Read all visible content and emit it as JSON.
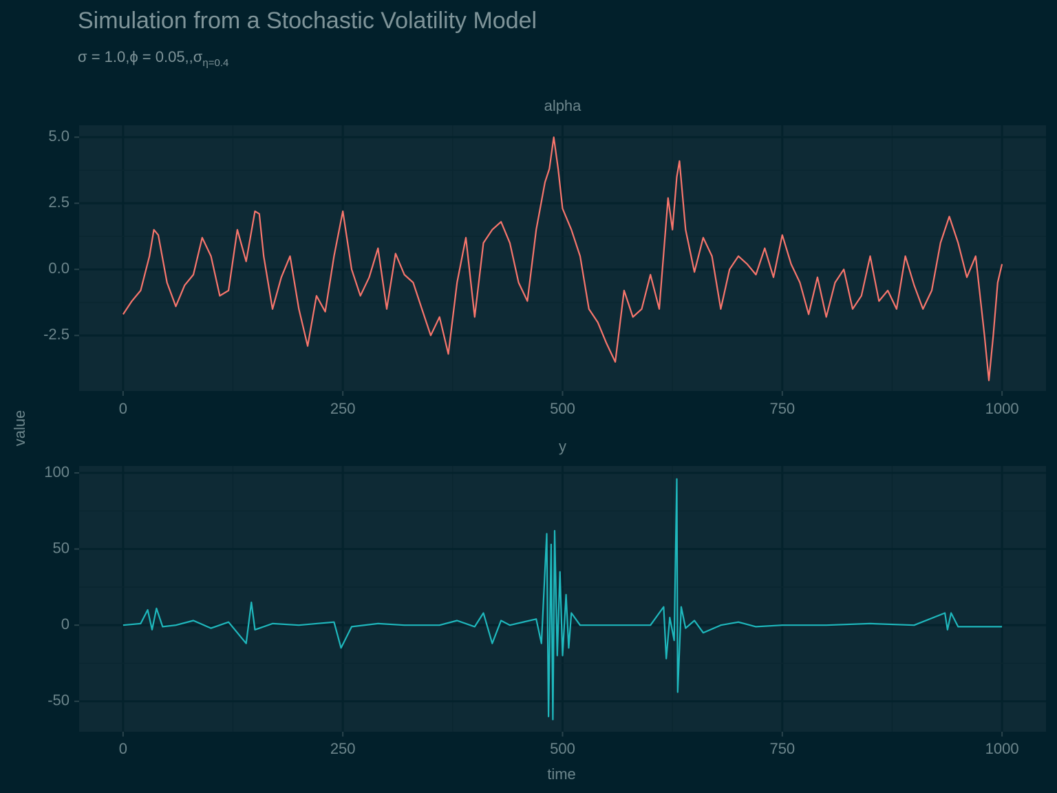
{
  "title": "Simulation from a Stochastic Volatility Model",
  "subtitle": {
    "text": "σ = 1.0,ϕ = 0.05,,σ",
    "subscript": "η=0.4"
  },
  "y_label": "value",
  "x_label": "time",
  "chart_data": [
    {
      "type": "line",
      "facet": "alpha",
      "color": "#f8766d",
      "grid": true,
      "xlim": [
        -50,
        1050
      ],
      "xticks": [
        0,
        250,
        500,
        750,
        1000
      ],
      "ylim": [
        -4.6,
        5.45
      ],
      "yticks": [
        {
          "value": 5,
          "label": "5.0"
        },
        2.5,
        {
          "value": 0,
          "label": "0.0"
        },
        -2.5
      ],
      "x": [
        0,
        10,
        20,
        30,
        35,
        40,
        50,
        60,
        70,
        80,
        90,
        100,
        110,
        120,
        130,
        140,
        150,
        155,
        160,
        170,
        180,
        190,
        200,
        210,
        220,
        230,
        240,
        250,
        260,
        270,
        280,
        290,
        300,
        310,
        320,
        330,
        340,
        350,
        360,
        370,
        380,
        390,
        400,
        410,
        420,
        430,
        440,
        450,
        460,
        470,
        480,
        485,
        490,
        495,
        500,
        510,
        520,
        530,
        540,
        550,
        560,
        570,
        580,
        590,
        600,
        610,
        620,
        625,
        630,
        633,
        640,
        650,
        660,
        670,
        680,
        690,
        700,
        710,
        720,
        730,
        740,
        750,
        760,
        770,
        780,
        790,
        800,
        810,
        820,
        830,
        840,
        850,
        860,
        870,
        880,
        890,
        900,
        910,
        920,
        930,
        940,
        950,
        960,
        970,
        980,
        985,
        990,
        995,
        1000
      ],
      "values": [
        -1.7,
        -1.2,
        -0.8,
        0.5,
        1.5,
        1.3,
        -0.5,
        -1.4,
        -0.6,
        -0.2,
        1.2,
        0.5,
        -1.0,
        -0.8,
        1.5,
        0.3,
        2.2,
        2.1,
        0.5,
        -1.5,
        -0.3,
        0.5,
        -1.5,
        -2.9,
        -1.0,
        -1.6,
        0.5,
        2.2,
        0.0,
        -1.0,
        -0.3,
        0.8,
        -1.5,
        0.6,
        -0.2,
        -0.5,
        -1.5,
        -2.5,
        -1.8,
        -3.2,
        -0.5,
        1.2,
        -1.8,
        1.0,
        1.5,
        1.8,
        1.0,
        -0.5,
        -1.2,
        1.5,
        3.3,
        3.8,
        5.0,
        3.8,
        2.3,
        1.5,
        0.5,
        -1.5,
        -2.0,
        -2.8,
        -3.5,
        -0.8,
        -1.8,
        -1.5,
        -0.2,
        -1.5,
        2.7,
        1.5,
        3.5,
        4.1,
        1.5,
        -0.1,
        1.2,
        0.5,
        -1.5,
        0.0,
        0.5,
        0.2,
        -0.2,
        0.8,
        -0.3,
        1.3,
        0.2,
        -0.5,
        -1.7,
        -0.3,
        -1.8,
        -0.5,
        0.0,
        -1.5,
        -1.0,
        0.5,
        -1.2,
        -0.8,
        -1.5,
        0.5,
        -0.6,
        -1.5,
        -0.8,
        1.0,
        2.0,
        1.0,
        -0.3,
        0.5,
        -2.5,
        -4.2,
        -2.5,
        -0.5,
        0.2
      ]
    },
    {
      "type": "line",
      "facet": "y",
      "color": "#1fb8bd",
      "grid": true,
      "xlim": [
        -50,
        1050
      ],
      "xticks": [
        0,
        250,
        500,
        750,
        1000
      ],
      "ylim": [
        -70,
        104.5
      ],
      "yticks": [
        100,
        50,
        0,
        -50
      ],
      "x": [
        0,
        20,
        28,
        33,
        38,
        45,
        60,
        80,
        100,
        120,
        140,
        146,
        150,
        170,
        200,
        240,
        248,
        260,
        290,
        320,
        360,
        380,
        400,
        410,
        420,
        430,
        440,
        470,
        476,
        482,
        484,
        487,
        489,
        491,
        494,
        497,
        500,
        504,
        507,
        510,
        520,
        560,
        600,
        615,
        618,
        622,
        627,
        630,
        631,
        635,
        640,
        650,
        660,
        680,
        700,
        720,
        750,
        800,
        850,
        900,
        935,
        938,
        942,
        950,
        1000
      ],
      "values": [
        0,
        1,
        10,
        -3,
        11,
        -1,
        0,
        3,
        -2,
        2,
        -12,
        15,
        -3,
        1,
        0,
        2,
        -15,
        -1,
        1,
        0,
        0,
        3,
        -1,
        8,
        -12,
        3,
        0,
        4,
        -12,
        60,
        -60,
        53,
        -62,
        62,
        -20,
        35,
        -20,
        20,
        -15,
        8,
        0,
        0,
        0,
        12,
        -22,
        5,
        -10,
        96,
        -44,
        12,
        -2,
        3,
        -5,
        0,
        2,
        -1,
        0,
        0,
        1,
        0,
        8,
        -3,
        8,
        -1,
        -1
      ]
    }
  ]
}
